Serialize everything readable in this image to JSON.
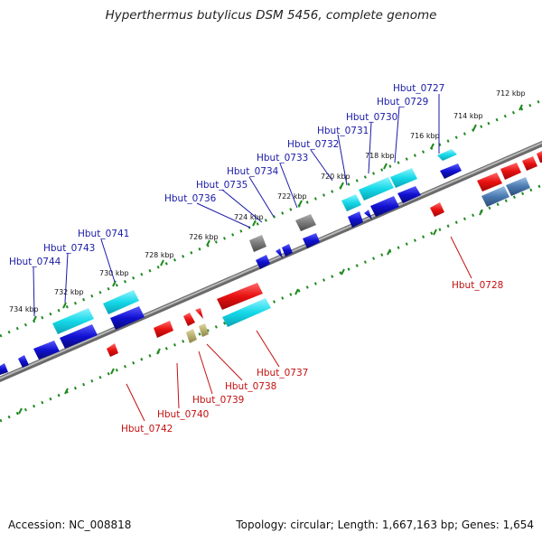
{
  "title": "Hyperthermus butylicus DSM 5456, complete genome",
  "footer": {
    "accession": "Accession: NC_008818",
    "summary": "Topology: circular; Length: 1,667,163 bp; Genes: 1,654"
  },
  "colors": {
    "backbone": "#8a8a8a",
    "tick": "#1e8a1e",
    "forward_cds": "#1010d0",
    "forward_cds_light": "#15d8e8",
    "reverse_cds": "#e81010",
    "rna_gray": "#7a7a7a",
    "rna_tan": "#b8b070",
    "steel": "#4a7ab0",
    "label_blue": "#1a1aa8",
    "label_red": "#c41010"
  },
  "scale_labels": [
    "712 kbp",
    "714 kbp",
    "716 kbp",
    "718 kbp",
    "720 kbp",
    "722 kbp",
    "724 kbp",
    "726 kbp",
    "728 kbp",
    "730 kbp",
    "732 kbp",
    "734 kbp"
  ],
  "gene_labels": {
    "forward": [
      "Hbut_0727",
      "Hbut_0729",
      "Hbut_0730",
      "Hbut_0731",
      "Hbut_0732",
      "Hbut_0733",
      "Hbut_0734",
      "Hbut_0735",
      "Hbut_0736",
      "Hbut_0741",
      "Hbut_0743",
      "Hbut_0744"
    ],
    "reverse": [
      "Hbut_0728",
      "Hbut_0737",
      "Hbut_0738",
      "Hbut_0739",
      "Hbut_0740",
      "Hbut_0742"
    ]
  }
}
